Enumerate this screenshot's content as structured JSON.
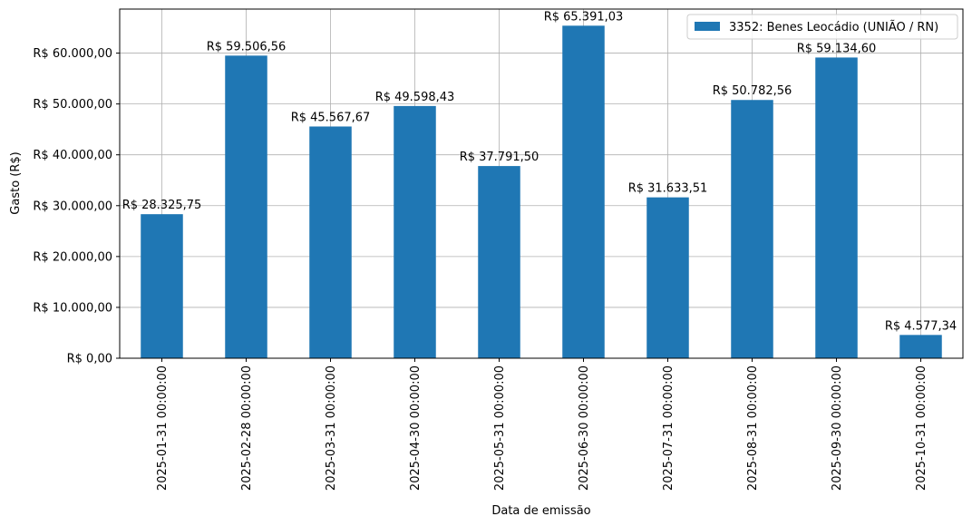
{
  "chart_data": {
    "type": "bar",
    "title": "",
    "xlabel": "Data de emissão",
    "ylabel": "Gasto (R$)",
    "categories": [
      "2025-01-31 00:00:00",
      "2025-02-28 00:00:00",
      "2025-03-31 00:00:00",
      "2025-04-30 00:00:00",
      "2025-05-31 00:00:00",
      "2025-06-30 00:00:00",
      "2025-07-31 00:00:00",
      "2025-08-31 00:00:00",
      "2025-09-30 00:00:00",
      "2025-10-31 00:00:00"
    ],
    "series": [
      {
        "name": "3352: Benes Leocádio (UNIÃO / RN)",
        "color": "#1f77b4",
        "values": [
          28325.75,
          59506.56,
          45567.67,
          49598.43,
          37791.5,
          65391.03,
          31633.51,
          50782.56,
          59134.6,
          4577.34
        ]
      }
    ],
    "data_labels": [
      "R$ 28.325,75",
      "R$ 59.506,56",
      "R$ 45.567,67",
      "R$ 49.598,43",
      "R$ 37.791,50",
      "R$ 65.391,03",
      "R$ 31.633,51",
      "R$ 50.782,56",
      "R$ 59.134,60",
      "R$ 4.577,34"
    ],
    "yticks": [
      0,
      10000,
      20000,
      30000,
      40000,
      50000,
      60000
    ],
    "ytick_labels": [
      "R$ 0,00",
      "R$ 10.000,00",
      "R$ 20.000,00",
      "R$ 30.000,00",
      "R$ 40.000,00",
      "R$ 50.000,00",
      "R$ 60.000,00"
    ],
    "ylim": [
      0,
      68660
    ],
    "grid": true,
    "legend_position": "top-right"
  }
}
